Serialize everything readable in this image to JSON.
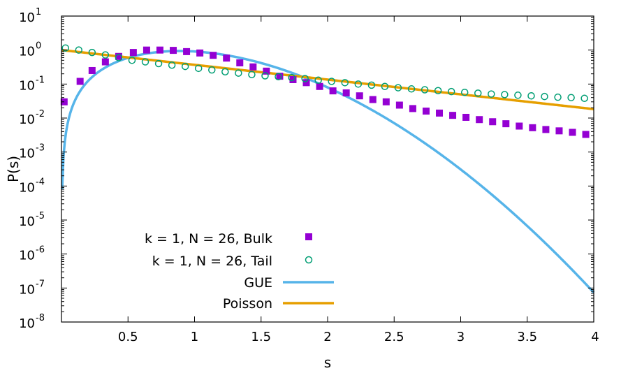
{
  "chart_data": {
    "type": "scatter",
    "title": "",
    "xlabel": "s",
    "ylabel": "P(s)",
    "xlim": [
      0,
      4
    ],
    "ylim_log10": [
      -8,
      1
    ],
    "yscale": "log",
    "x_ticks": [
      0.5,
      1,
      1.5,
      2,
      2.5,
      3,
      3.5,
      4
    ],
    "x_tick_labels": [
      "0.5",
      "1",
      "1.5",
      "2",
      "2.5",
      "3",
      "3.5",
      "4"
    ],
    "y_tick_exponents": [
      -8,
      -7,
      -6,
      -5,
      -4,
      -3,
      -2,
      -1,
      0,
      1
    ],
    "y_tick_labels": [
      {
        "base": "10",
        "exp": "-8"
      },
      {
        "base": "10",
        "exp": "-7"
      },
      {
        "base": "10",
        "exp": "-6"
      },
      {
        "base": "10",
        "exp": "-5"
      },
      {
        "base": "10",
        "exp": "-4"
      },
      {
        "base": "10",
        "exp": "-3"
      },
      {
        "base": "10",
        "exp": "-2"
      },
      {
        "base": "10",
        "exp": "-1"
      },
      {
        "base": "10",
        "exp": "0"
      },
      {
        "base": "10",
        "exp": "1"
      }
    ],
    "legend_position": "bottom-left",
    "series": [
      {
        "name": "k = 1, N = 26, Bulk",
        "kind": "points",
        "marker": "square",
        "color": "#9400d3",
        "x": [
          0.02,
          0.14,
          0.23,
          0.33,
          0.43,
          0.54,
          0.64,
          0.74,
          0.84,
          0.94,
          1.04,
          1.14,
          1.24,
          1.34,
          1.44,
          1.54,
          1.64,
          1.74,
          1.84,
          1.94,
          2.04,
          2.14,
          2.24,
          2.34,
          2.44,
          2.54,
          2.64,
          2.74,
          2.84,
          2.94,
          3.04,
          3.14,
          3.24,
          3.34,
          3.44,
          3.54,
          3.64,
          3.74,
          3.84,
          3.94
        ],
        "y": [
          0.03,
          0.12,
          0.25,
          0.45,
          0.65,
          0.85,
          1.0,
          1.0,
          0.98,
          0.9,
          0.82,
          0.7,
          0.58,
          0.42,
          0.32,
          0.24,
          0.17,
          0.135,
          0.11,
          0.085,
          0.063,
          0.055,
          0.045,
          0.035,
          0.03,
          0.024,
          0.019,
          0.016,
          0.014,
          0.012,
          0.0105,
          0.009,
          0.0078,
          0.0068,
          0.0058,
          0.0052,
          0.0046,
          0.0042,
          0.0038,
          0.0033
        ]
      },
      {
        "name": "k = 1, N = 26, Tail",
        "kind": "points",
        "marker": "open-circle",
        "color": "#009e73",
        "x": [
          0.03,
          0.13,
          0.23,
          0.33,
          0.43,
          0.53,
          0.63,
          0.73,
          0.83,
          0.93,
          1.03,
          1.13,
          1.23,
          1.33,
          1.43,
          1.53,
          1.63,
          1.73,
          1.83,
          1.93,
          2.03,
          2.13,
          2.23,
          2.33,
          2.43,
          2.53,
          2.63,
          2.73,
          2.83,
          2.93,
          3.03,
          3.13,
          3.23,
          3.33,
          3.43,
          3.53,
          3.63,
          3.73,
          3.83,
          3.93
        ],
        "y": [
          1.15,
          1.0,
          0.85,
          0.72,
          0.6,
          0.5,
          0.45,
          0.4,
          0.36,
          0.33,
          0.29,
          0.26,
          0.23,
          0.21,
          0.19,
          0.175,
          0.165,
          0.155,
          0.145,
          0.13,
          0.12,
          0.11,
          0.1,
          0.093,
          0.085,
          0.078,
          0.072,
          0.068,
          0.064,
          0.06,
          0.057,
          0.054,
          0.051,
          0.049,
          0.047,
          0.045,
          0.043,
          0.041,
          0.04,
          0.038
        ]
      },
      {
        "name": "GUE",
        "kind": "line",
        "color": "#56b4e9",
        "formula": "(32/pi^2) s^2 exp(-4 s^2 / pi)"
      },
      {
        "name": "Poisson",
        "kind": "line",
        "color": "#e69f00",
        "formula": "exp(-s)"
      }
    ]
  }
}
